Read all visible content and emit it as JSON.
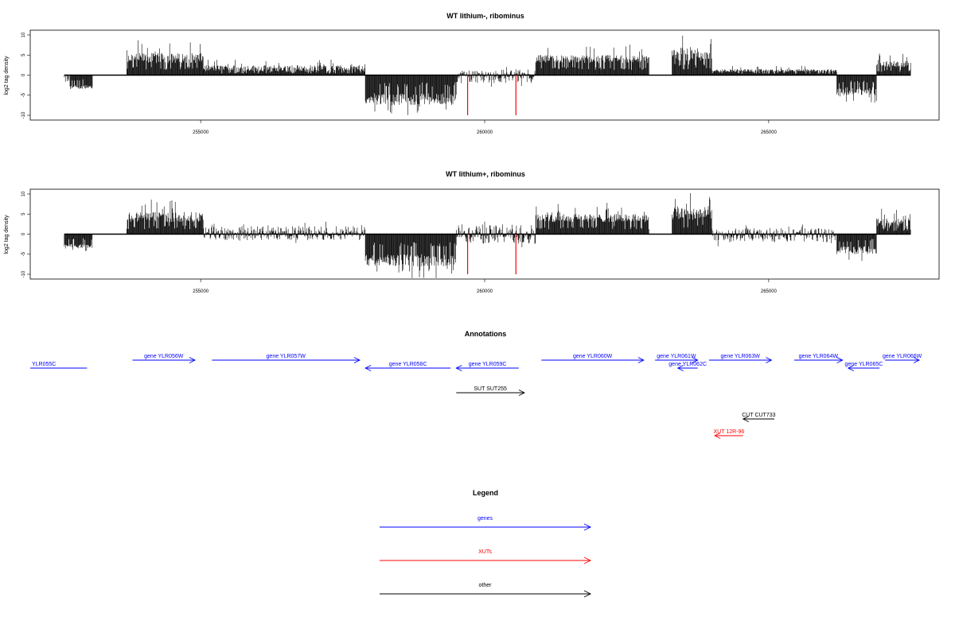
{
  "chart_data": [
    {
      "type": "bar",
      "title": "WT lithium-, ribominus",
      "ylabel": "log2 tag density",
      "xlim": [
        252000,
        268000
      ],
      "ylim": [
        -10,
        10
      ],
      "x_ticks": [
        "255000",
        "260000",
        "265000"
      ],
      "y_ticks": [
        "-10",
        "-5",
        "0",
        "5",
        "10"
      ],
      "grid": false,
      "baseline_x_range": [
        252600,
        267500
      ],
      "marker_color": "#ff0000",
      "markers_x": [
        259700,
        260550
      ],
      "segments": [
        {
          "x": [
            252600,
            252700
          ],
          "y": [
            -2,
            0.2
          ]
        },
        {
          "x": [
            252700,
            253100
          ],
          "y": [
            -2.5,
            -3.5
          ]
        },
        {
          "x": [
            253700,
            255050
          ],
          "y": [
            3,
            5.5
          ]
        },
        {
          "x": [
            255050,
            257900
          ],
          "y": [
            1,
            2.5
          ]
        },
        {
          "x": [
            257900,
            259500
          ],
          "y": [
            -4.5,
            -7.5
          ]
        },
        {
          "x": [
            259500,
            260900
          ],
          "y": [
            -2,
            1.5
          ]
        },
        {
          "x": [
            260900,
            262900
          ],
          "y": [
            3,
            5
          ]
        },
        {
          "x": [
            263300,
            264000
          ],
          "y": [
            3.5,
            7
          ]
        },
        {
          "x": [
            264000,
            266200
          ],
          "y": [
            0.8,
            1.5
          ]
        },
        {
          "x": [
            266200,
            266900
          ],
          "y": [
            -3,
            -5
          ]
        },
        {
          "x": [
            266900,
            267500
          ],
          "y": [
            2,
            3.5
          ]
        }
      ]
    },
    {
      "type": "bar",
      "title": "WT lithium+, ribominus",
      "ylabel": "log2 tag density",
      "xlim": [
        252000,
        268000
      ],
      "ylim": [
        -10,
        10
      ],
      "x_ticks": [
        "255000",
        "260000",
        "265000"
      ],
      "y_ticks": [
        "-10",
        "-5",
        "0",
        "5",
        "10"
      ],
      "grid": false,
      "baseline_x_range": [
        252600,
        267500
      ],
      "marker_color": "#ff0000",
      "markers_x": [
        259700,
        260550
      ],
      "segments": [
        {
          "x": [
            252600,
            253100
          ],
          "y": [
            -2.5,
            -3.5
          ]
        },
        {
          "x": [
            253700,
            255050
          ],
          "y": [
            3,
            5.5
          ]
        },
        {
          "x": [
            255050,
            257900
          ],
          "y": [
            -1.5,
            2
          ]
        },
        {
          "x": [
            257900,
            259500
          ],
          "y": [
            -5,
            -8
          ]
        },
        {
          "x": [
            259500,
            260900
          ],
          "y": [
            -2.5,
            2.5
          ]
        },
        {
          "x": [
            260900,
            262900
          ],
          "y": [
            3,
            5
          ]
        },
        {
          "x": [
            263300,
            264000
          ],
          "y": [
            3.5,
            7
          ]
        },
        {
          "x": [
            264000,
            266200
          ],
          "y": [
            -2,
            1.5
          ]
        },
        {
          "x": [
            266200,
            266900
          ],
          "y": [
            -3,
            -5
          ]
        },
        {
          "x": [
            266900,
            267500
          ],
          "y": [
            2,
            4
          ]
        }
      ]
    }
  ],
  "annotations": {
    "title": "Annotations",
    "items": [
      {
        "label": "YLR055C",
        "color": "#0000ff",
        "start": 252000,
        "end": 253000,
        "dir": "none",
        "row": 1
      },
      {
        "label": "gene YLR056W",
        "color": "#0000ff",
        "start": 253800,
        "end": 254900,
        "dir": "right",
        "row": 0
      },
      {
        "label": "gene YLR057W",
        "color": "#0000ff",
        "start": 255200,
        "end": 257800,
        "dir": "right",
        "row": 0
      },
      {
        "label": "gene YLR058C",
        "color": "#0000ff",
        "start": 257900,
        "end": 259400,
        "dir": "left",
        "row": 1
      },
      {
        "label": "gene YLR059C",
        "color": "#0000ff",
        "start": 259500,
        "end": 260600,
        "dir": "left",
        "row": 1
      },
      {
        "label": "gene YLR060W",
        "color": "#0000ff",
        "start": 261000,
        "end": 262800,
        "dir": "right",
        "row": 0
      },
      {
        "label": "gene YLR061W",
        "color": "#0000ff",
        "start": 263000,
        "end": 263750,
        "dir": "right",
        "row": 0
      },
      {
        "label": "gene YLR062C",
        "color": "#0000ff",
        "start": 263400,
        "end": 263750,
        "dir": "left",
        "row": 1
      },
      {
        "label": "gene YLR063W",
        "color": "#0000ff",
        "start": 263950,
        "end": 265050,
        "dir": "right",
        "row": 0
      },
      {
        "label": "gene YLR064W",
        "color": "#0000ff",
        "start": 265450,
        "end": 266300,
        "dir": "right",
        "row": 0
      },
      {
        "label": "gene YLR065C",
        "color": "#0000ff",
        "start": 266400,
        "end": 266950,
        "dir": "left",
        "row": 1
      },
      {
        "label": "gene YLR066W",
        "color": "#0000ff",
        "start": 267050,
        "end": 267650,
        "dir": "right",
        "row": 0
      },
      {
        "label": "SUT SUT255",
        "color": "#000000",
        "start": 259500,
        "end": 260700,
        "dir": "right",
        "row": 2
      },
      {
        "label": "CUT CUT733",
        "color": "#000000",
        "start": 264550,
        "end": 265100,
        "dir": "left",
        "row": 3
      },
      {
        "label": "XUT 12R-96",
        "color": "#ff0000",
        "start": 264050,
        "end": 264550,
        "dir": "left",
        "row": 4
      }
    ]
  },
  "legend": {
    "title": "Legend",
    "items": [
      {
        "label": "genes",
        "color": "#0000ff"
      },
      {
        "label": "XUTs",
        "color": "#ff0000"
      },
      {
        "label": "other",
        "color": "#000000"
      }
    ]
  }
}
